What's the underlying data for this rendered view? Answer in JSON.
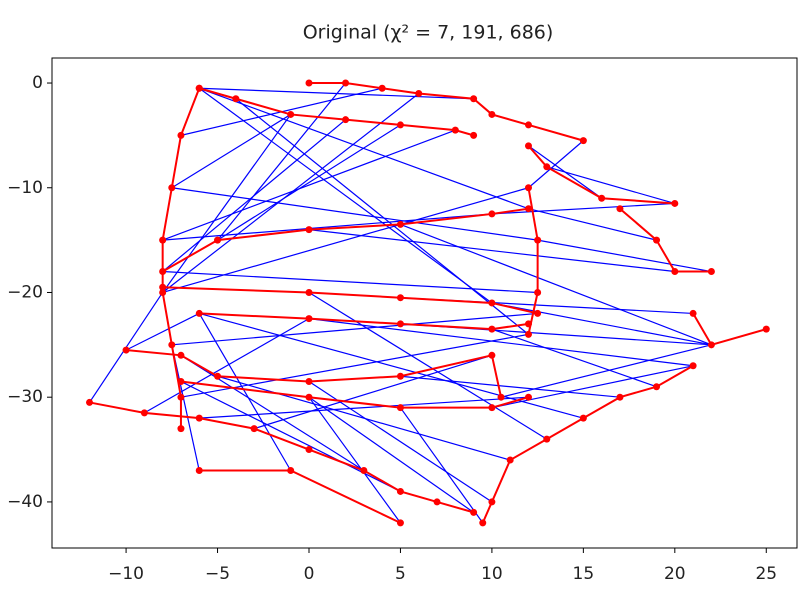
{
  "chart_data": {
    "type": "pose-graph",
    "title": "Original (χ² = 7, 191, 686)",
    "xlim": [
      -14.05,
      26.68
    ],
    "ylim": [
      -44.4,
      2.39
    ],
    "xticks": [
      {
        "value": -10,
        "label": "−10"
      },
      {
        "value": -5,
        "label": "−5"
      },
      0,
      5,
      10,
      15,
      20,
      25
    ],
    "yticks": [
      0,
      {
        "value": -10,
        "label": "−10"
      },
      {
        "value": -20,
        "label": "−20"
      },
      {
        "value": -30,
        "label": "−30"
      },
      {
        "value": -40,
        "label": "−40"
      }
    ],
    "node_color": "#ff0000",
    "edge_color": "#0000ff",
    "series": [
      {
        "x": [
          0,
          2,
          4,
          6,
          9,
          10,
          12,
          15
        ],
        "y": [
          0,
          0,
          -0.5,
          -1,
          -1.5,
          -3,
          -4,
          -5.5
        ]
      },
      {
        "x": [
          -6,
          -4,
          -1,
          2,
          5,
          8,
          9
        ],
        "y": [
          -0.5,
          -1.5,
          -3,
          -3.5,
          -4,
          -4.5,
          -5
        ]
      },
      {
        "x": [
          -6,
          -7,
          -7.5,
          -8,
          -8,
          -7.5,
          -7,
          -7
        ],
        "y": [
          -0.5,
          -5,
          -10,
          -15,
          -20,
          -25,
          -30,
          -33
        ]
      },
      {
        "x": [
          -8,
          -5,
          0,
          5,
          10,
          12
        ],
        "y": [
          -18,
          -15,
          -14,
          -13.5,
          -12.5,
          -12
        ]
      },
      {
        "x": [
          12,
          12.5,
          12.5,
          12
        ],
        "y": [
          -10,
          -15,
          -20,
          -24
        ]
      },
      {
        "x": [
          -8,
          0,
          5,
          10,
          12.5
        ],
        "y": [
          -19.5,
          -20,
          -20.5,
          -21,
          -22
        ]
      },
      {
        "x": [
          -6,
          0,
          5,
          10,
          12
        ],
        "y": [
          -22,
          -22.5,
          -23,
          -23.5,
          -23
        ]
      },
      {
        "x": [
          12,
          13,
          16,
          20
        ],
        "y": [
          -6,
          -8,
          -11,
          -11.5
        ]
      },
      {
        "x": [
          17,
          19,
          20,
          22
        ],
        "y": [
          -12,
          -15,
          -18,
          -18
        ]
      },
      {
        "x": [
          21,
          22,
          25
        ],
        "y": [
          -22,
          -25,
          -23.5
        ]
      },
      {
        "x": [
          21,
          19,
          17,
          15,
          13,
          11,
          10,
          9.5
        ],
        "y": [
          -27,
          -29,
          -30,
          -32,
          -34,
          -36,
          -40,
          -42
        ]
      },
      {
        "x": [
          -12,
          -9,
          -6,
          -3,
          0,
          3,
          5,
          7,
          9
        ],
        "y": [
          -30.5,
          -31.5,
          -32,
          -33,
          -35,
          -37,
          -39,
          -40,
          -41
        ]
      },
      {
        "x": [
          -10,
          -7,
          -5,
          0,
          5,
          10,
          10.5
        ],
        "y": [
          -25.5,
          -26,
          -28,
          -28.5,
          -28,
          -26,
          -30
        ]
      },
      {
        "x": [
          -7,
          0,
          5,
          10,
          12
        ],
        "y": [
          -28.5,
          -30,
          -31,
          -31,
          -30
        ]
      },
      {
        "x": [
          -6,
          -1,
          5
        ],
        "y": [
          -37,
          -37,
          -42
        ]
      }
    ],
    "edges": [
      [
        -6,
        -0.5,
        12,
        -12
      ],
      [
        -6,
        -0.5,
        10,
        -21
      ],
      [
        -4,
        -1.5,
        12,
        -24
      ],
      [
        -1,
        -3,
        -7.5,
        -10
      ],
      [
        -1,
        -3,
        -8,
        -20
      ],
      [
        2,
        -3.5,
        -8,
        -18
      ],
      [
        5,
        -4,
        -5,
        -15
      ],
      [
        8,
        -4.5,
        -8,
        -15
      ],
      [
        4,
        -0.5,
        -7,
        -5
      ],
      [
        2,
        0,
        -5,
        -15
      ],
      [
        9,
        -1.5,
        -6,
        -0.5
      ],
      [
        6,
        -1,
        -8,
        -20
      ],
      [
        -7.5,
        -10,
        12.5,
        -15
      ],
      [
        -8,
        -15,
        10,
        -12.5
      ],
      [
        -8,
        -18,
        12.5,
        -20
      ],
      [
        -8,
        -20,
        12,
        -10
      ],
      [
        -7.5,
        -25,
        12.5,
        -22
      ],
      [
        -7,
        -30,
        12,
        -24
      ],
      [
        0,
        -14,
        20,
        -18
      ],
      [
        5,
        -13.5,
        22,
        -25
      ],
      [
        10,
        -12.5,
        20,
        -11.5
      ],
      [
        12,
        -12,
        19,
        -15
      ],
      [
        5,
        -20.5,
        21,
        -22
      ],
      [
        10,
        -21,
        22,
        -25
      ],
      [
        0,
        -22.5,
        21,
        -27
      ],
      [
        5,
        -23,
        22,
        -25
      ],
      [
        10,
        -23.5,
        19,
        -29
      ],
      [
        -6,
        -22,
        15,
        -32
      ],
      [
        0,
        -20,
        13,
        -34
      ],
      [
        -5,
        -28,
        11,
        -36
      ],
      [
        0,
        -28.5,
        10,
        -40
      ],
      [
        5,
        -28,
        17,
        -30
      ],
      [
        -7,
        -26,
        3,
        -37
      ],
      [
        -7,
        -28.5,
        5,
        -39
      ],
      [
        0,
        -30,
        9,
        -41
      ],
      [
        -6,
        -32,
        12,
        -30
      ],
      [
        -3,
        -33,
        10,
        -26
      ],
      [
        -9,
        -31.5,
        0,
        -22.5
      ],
      [
        -6,
        -37,
        -7.5,
        -25
      ],
      [
        -1,
        -37,
        -6,
        -22
      ],
      [
        12.5,
        -15,
        22,
        -18
      ],
      [
        12,
        -6,
        16,
        -11
      ],
      [
        15,
        -5.5,
        12,
        -10
      ],
      [
        13,
        -8,
        20,
        -11.5
      ],
      [
        10,
        -31,
        21,
        -27
      ],
      [
        -12,
        -30.5,
        -8,
        -20
      ],
      [
        -10,
        -25.5,
        -6,
        -22
      ],
      [
        5,
        -42,
        0,
        -30
      ],
      [
        9.5,
        -42,
        5,
        -31
      ],
      [
        10.5,
        -30,
        22,
        -25
      ]
    ]
  }
}
